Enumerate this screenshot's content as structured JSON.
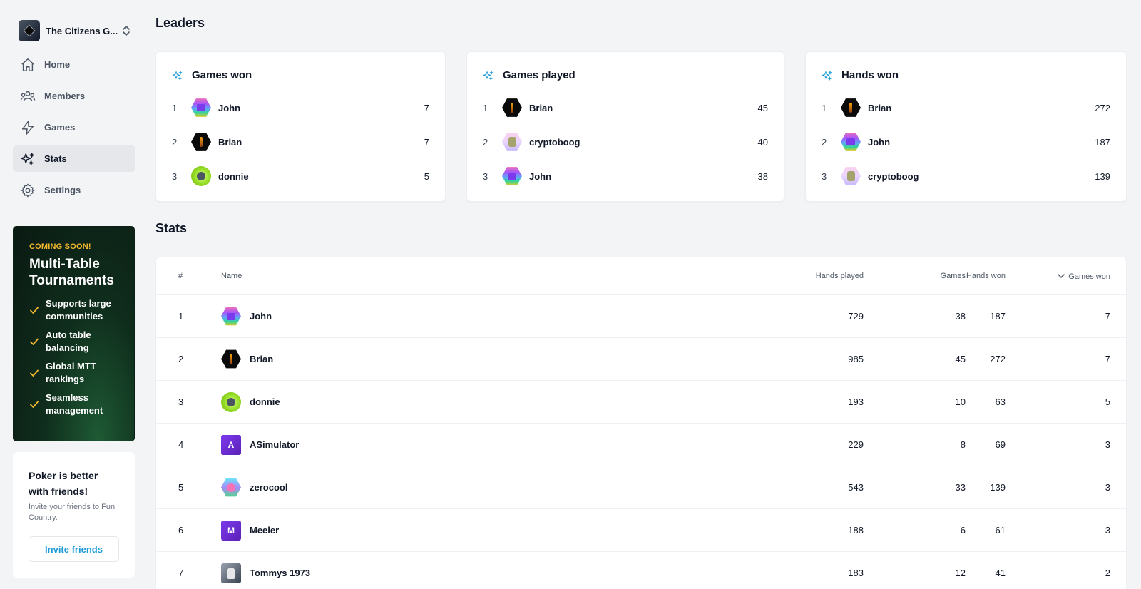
{
  "sidebar": {
    "club_name": "The Citizens G...",
    "nav": [
      {
        "label": "Home",
        "icon": "home-icon"
      },
      {
        "label": "Members",
        "icon": "members-icon"
      },
      {
        "label": "Games",
        "icon": "lightning-icon"
      },
      {
        "label": "Stats",
        "icon": "sparkles-icon",
        "active": true
      },
      {
        "label": "Settings",
        "icon": "gear-icon"
      }
    ],
    "promo": {
      "tag": "COMING SOON!",
      "title": "Multi-Table Tournaments",
      "features": [
        "Supports large communities",
        "Auto table balancing",
        "Global MTT rankings",
        "Seamless management"
      ]
    },
    "invite": {
      "title": "Poker is better with friends!",
      "subtitle": "Invite your friends to Fun Country.",
      "button": "Invite friends"
    }
  },
  "leaders": {
    "title": "Leaders",
    "cards": [
      {
        "title": "Games won",
        "rows": [
          {
            "rank": "1",
            "name": "John",
            "value": "7"
          },
          {
            "rank": "2",
            "name": "Brian",
            "value": "7"
          },
          {
            "rank": "3",
            "name": "donnie",
            "value": "5"
          }
        ]
      },
      {
        "title": "Games played",
        "rows": [
          {
            "rank": "1",
            "name": "Brian",
            "value": "45"
          },
          {
            "rank": "2",
            "name": "cryptoboog",
            "value": "40"
          },
          {
            "rank": "3",
            "name": "John",
            "value": "38"
          }
        ]
      },
      {
        "title": "Hands won",
        "rows": [
          {
            "rank": "1",
            "name": "Brian",
            "value": "272"
          },
          {
            "rank": "2",
            "name": "John",
            "value": "187"
          },
          {
            "rank": "3",
            "name": "cryptoboog",
            "value": "139"
          }
        ]
      }
    ]
  },
  "stats": {
    "title": "Stats",
    "columns": {
      "rank": "#",
      "name": "Name",
      "hands_played": "Hands played",
      "hands_won": "Hands won",
      "games": "Games",
      "games_won": "Games won"
    },
    "rows": [
      {
        "rank": "1",
        "name": "John",
        "avatar_letter": "",
        "hands_played": "729",
        "hands_won": "187",
        "games": "38",
        "games_won": "7"
      },
      {
        "rank": "2",
        "name": "Brian",
        "avatar_letter": "",
        "hands_played": "985",
        "hands_won": "272",
        "games": "45",
        "games_won": "7"
      },
      {
        "rank": "3",
        "name": "donnie",
        "avatar_letter": "",
        "hands_played": "193",
        "hands_won": "63",
        "games": "10",
        "games_won": "5"
      },
      {
        "rank": "4",
        "name": "ASimulator",
        "avatar_letter": "A",
        "hands_played": "229",
        "hands_won": "69",
        "games": "8",
        "games_won": "3"
      },
      {
        "rank": "5",
        "name": "zerocool",
        "avatar_letter": "",
        "hands_played": "543",
        "hands_won": "139",
        "games": "33",
        "games_won": "3"
      },
      {
        "rank": "6",
        "name": "Meeler",
        "avatar_letter": "M",
        "hands_played": "188",
        "hands_won": "61",
        "games": "6",
        "games_won": "3"
      },
      {
        "rank": "7",
        "name": "Tommys 1973",
        "avatar_letter": "",
        "hands_played": "183",
        "hands_won": "41",
        "games": "12",
        "games_won": "2"
      }
    ]
  },
  "colors": {
    "accent": "#1d9bd7",
    "promo_tag": "#f5b82e",
    "promo_bg": "#0f2d1c",
    "letter_avatar": "#6d28d9"
  }
}
